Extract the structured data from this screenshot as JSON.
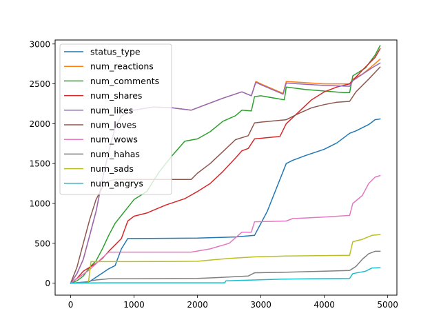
{
  "chart_data": {
    "type": "line",
    "title": "",
    "xlabel": "",
    "ylabel": "",
    "xlim": [
      -245,
      5145
    ],
    "ylim": [
      -150,
      3050
    ],
    "xticks": [
      0,
      1000,
      2000,
      3000,
      4000,
      5000
    ],
    "yticks": [
      0,
      500,
      1000,
      1500,
      2000,
      2500,
      3000
    ],
    "xtick_labels": [
      "0",
      "1000",
      "2000",
      "3000",
      "4000",
      "5000"
    ],
    "ytick_labels": [
      "0",
      "500",
      "1000",
      "1500",
      "2000",
      "2500",
      "3000"
    ],
    "grid": false,
    "legend_position": "upper-left",
    "series": [
      {
        "name": "status_type",
        "color": "#1f77b4",
        "points": [
          [
            0,
            0
          ],
          [
            300,
            20
          ],
          [
            600,
            180
          ],
          [
            700,
            220
          ],
          [
            800,
            430
          ],
          [
            900,
            560
          ],
          [
            1000,
            560
          ],
          [
            2000,
            565
          ],
          [
            2600,
            580
          ],
          [
            2900,
            600
          ],
          [
            3100,
            900
          ],
          [
            3400,
            1500
          ],
          [
            3500,
            1540
          ],
          [
            3700,
            1600
          ],
          [
            4000,
            1680
          ],
          [
            4200,
            1760
          ],
          [
            4400,
            1880
          ],
          [
            4500,
            1910
          ],
          [
            4700,
            1990
          ],
          [
            4800,
            2050
          ],
          [
            4880,
            2060
          ]
        ]
      },
      {
        "name": "num_reactions",
        "color": "#ff7f0e",
        "points": [
          [
            0,
            0
          ],
          [
            100,
            120
          ],
          [
            200,
            300
          ],
          [
            300,
            600
          ],
          [
            400,
            900
          ],
          [
            500,
            1300
          ],
          [
            600,
            1650
          ],
          [
            700,
            1950
          ],
          [
            800,
            2100
          ],
          [
            1000,
            2170
          ],
          [
            1300,
            2210
          ],
          [
            1600,
            2200
          ],
          [
            1900,
            2170
          ],
          [
            2100,
            2230
          ],
          [
            2400,
            2320
          ],
          [
            2700,
            2400
          ],
          [
            2850,
            2350
          ],
          [
            2920,
            2530
          ],
          [
            3000,
            2500
          ],
          [
            3350,
            2380
          ],
          [
            3400,
            2530
          ],
          [
            3600,
            2520
          ],
          [
            4000,
            2500
          ],
          [
            4400,
            2500
          ],
          [
            4450,
            2560
          ],
          [
            4600,
            2620
          ],
          [
            4750,
            2720
          ],
          [
            4880,
            2810
          ]
        ]
      },
      {
        "name": "num_comments",
        "color": "#2ca02c",
        "points": [
          [
            0,
            0
          ],
          [
            100,
            30
          ],
          [
            200,
            90
          ],
          [
            300,
            200
          ],
          [
            400,
            280
          ],
          [
            500,
            430
          ],
          [
            600,
            600
          ],
          [
            700,
            750
          ],
          [
            800,
            850
          ],
          [
            900,
            950
          ],
          [
            1000,
            1050
          ],
          [
            1200,
            1150
          ],
          [
            1400,
            1400
          ],
          [
            1600,
            1600
          ],
          [
            1800,
            1780
          ],
          [
            2000,
            1810
          ],
          [
            2200,
            1900
          ],
          [
            2400,
            2030
          ],
          [
            2600,
            2100
          ],
          [
            2700,
            2170
          ],
          [
            2850,
            2160
          ],
          [
            2900,
            2340
          ],
          [
            3000,
            2350
          ],
          [
            3370,
            2300
          ],
          [
            3400,
            2460
          ],
          [
            3700,
            2430
          ],
          [
            4000,
            2410
          ],
          [
            4300,
            2390
          ],
          [
            4400,
            2390
          ],
          [
            4450,
            2600
          ],
          [
            4650,
            2700
          ],
          [
            4800,
            2860
          ],
          [
            4880,
            2980
          ]
        ]
      },
      {
        "name": "num_shares",
        "color": "#d62728",
        "points": [
          [
            0,
            0
          ],
          [
            100,
            60
          ],
          [
            200,
            150
          ],
          [
            300,
            200
          ],
          [
            400,
            250
          ],
          [
            500,
            310
          ],
          [
            600,
            400
          ],
          [
            700,
            480
          ],
          [
            800,
            560
          ],
          [
            900,
            780
          ],
          [
            1000,
            840
          ],
          [
            1200,
            880
          ],
          [
            1500,
            980
          ],
          [
            1800,
            1060
          ],
          [
            2000,
            1150
          ],
          [
            2200,
            1250
          ],
          [
            2400,
            1400
          ],
          [
            2600,
            1570
          ],
          [
            2700,
            1660
          ],
          [
            2800,
            1690
          ],
          [
            2900,
            1810
          ],
          [
            3300,
            1840
          ],
          [
            3400,
            2000
          ],
          [
            3600,
            2150
          ],
          [
            3800,
            2300
          ],
          [
            4000,
            2400
          ],
          [
            4200,
            2460
          ],
          [
            4400,
            2500
          ],
          [
            4600,
            2670
          ],
          [
            4800,
            2830
          ],
          [
            4880,
            2940
          ]
        ]
      },
      {
        "name": "num_likes",
        "color": "#9467bd",
        "points": [
          [
            0,
            0
          ],
          [
            100,
            120
          ],
          [
            200,
            300
          ],
          [
            300,
            600
          ],
          [
            400,
            900
          ],
          [
            500,
            1300
          ],
          [
            600,
            1650
          ],
          [
            700,
            1950
          ],
          [
            800,
            2100
          ],
          [
            1000,
            2170
          ],
          [
            1300,
            2210
          ],
          [
            1600,
            2200
          ],
          [
            1900,
            2170
          ],
          [
            2100,
            2230
          ],
          [
            2400,
            2320
          ],
          [
            2700,
            2400
          ],
          [
            2850,
            2350
          ],
          [
            2920,
            2520
          ],
          [
            3000,
            2490
          ],
          [
            3350,
            2370
          ],
          [
            3400,
            2510
          ],
          [
            3600,
            2500
          ],
          [
            4000,
            2480
          ],
          [
            4400,
            2470
          ],
          [
            4450,
            2540
          ],
          [
            4600,
            2620
          ],
          [
            4750,
            2700
          ],
          [
            4880,
            2760
          ]
        ]
      },
      {
        "name": "num_loves",
        "color": "#8c564b",
        "points": [
          [
            0,
            0
          ],
          [
            100,
            200
          ],
          [
            200,
            500
          ],
          [
            300,
            800
          ],
          [
            400,
            1050
          ],
          [
            500,
            1200
          ],
          [
            600,
            1280
          ],
          [
            700,
            1300
          ],
          [
            800,
            1300
          ],
          [
            1900,
            1300
          ],
          [
            2000,
            1380
          ],
          [
            2200,
            1500
          ],
          [
            2400,
            1650
          ],
          [
            2600,
            1800
          ],
          [
            2800,
            1850
          ],
          [
            2900,
            2010
          ],
          [
            3000,
            2020
          ],
          [
            3400,
            2050
          ],
          [
            3600,
            2130
          ],
          [
            3800,
            2200
          ],
          [
            4000,
            2240
          ],
          [
            4200,
            2270
          ],
          [
            4400,
            2280
          ],
          [
            4500,
            2400
          ],
          [
            4700,
            2560
          ],
          [
            4880,
            2710
          ]
        ]
      },
      {
        "name": "num_wows",
        "color": "#e377c2",
        "points": [
          [
            0,
            0
          ],
          [
            300,
            170
          ],
          [
            500,
            320
          ],
          [
            600,
            390
          ],
          [
            1000,
            390
          ],
          [
            1900,
            390
          ],
          [
            2200,
            430
          ],
          [
            2500,
            500
          ],
          [
            2700,
            640
          ],
          [
            2850,
            640
          ],
          [
            2900,
            770
          ],
          [
            3400,
            780
          ],
          [
            3500,
            810
          ],
          [
            4000,
            830
          ],
          [
            4400,
            850
          ],
          [
            4450,
            1000
          ],
          [
            4600,
            1100
          ],
          [
            4700,
            1250
          ],
          [
            4800,
            1330
          ],
          [
            4880,
            1350
          ]
        ]
      },
      {
        "name": "num_hahas",
        "color": "#7f7f7f",
        "points": [
          [
            0,
            0
          ],
          [
            200,
            10
          ],
          [
            400,
            40
          ],
          [
            600,
            55
          ],
          [
            1000,
            55
          ],
          [
            2000,
            60
          ],
          [
            2300,
            70
          ],
          [
            2800,
            90
          ],
          [
            2900,
            130
          ],
          [
            3300,
            135
          ],
          [
            3500,
            140
          ],
          [
            4000,
            150
          ],
          [
            4400,
            160
          ],
          [
            4500,
            210
          ],
          [
            4600,
            300
          ],
          [
            4700,
            370
          ],
          [
            4800,
            400
          ],
          [
            4880,
            400
          ]
        ]
      },
      {
        "name": "num_sads",
        "color": "#bcbd22",
        "points": [
          [
            0,
            0
          ],
          [
            280,
            5
          ],
          [
            320,
            270
          ],
          [
            1000,
            270
          ],
          [
            2000,
            275
          ],
          [
            2200,
            290
          ],
          [
            2500,
            310
          ],
          [
            2900,
            330
          ],
          [
            3400,
            340
          ],
          [
            4400,
            350
          ],
          [
            4450,
            520
          ],
          [
            4600,
            550
          ],
          [
            4750,
            600
          ],
          [
            4880,
            610
          ]
        ]
      },
      {
        "name": "num_angrys",
        "color": "#17becf",
        "points": [
          [
            0,
            0
          ],
          [
            500,
            5
          ],
          [
            2430,
            5
          ],
          [
            2450,
            30
          ],
          [
            2900,
            40
          ],
          [
            3300,
            50
          ],
          [
            3800,
            55
          ],
          [
            4400,
            60
          ],
          [
            4450,
            120
          ],
          [
            4650,
            150
          ],
          [
            4750,
            190
          ],
          [
            4880,
            195
          ]
        ]
      }
    ]
  }
}
